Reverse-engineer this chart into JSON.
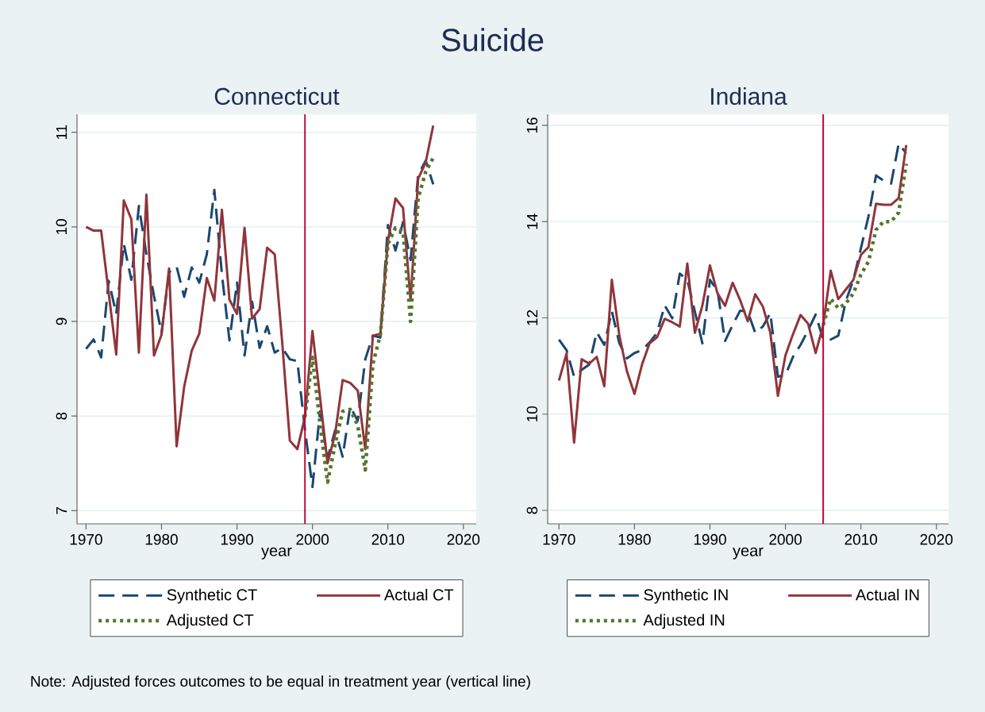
{
  "chart_data": [
    {
      "type": "line",
      "title": "Suicide",
      "subtitle": "Connecticut",
      "xlabel": "year",
      "x": [
        1970,
        1971,
        1972,
        1973,
        1974,
        1975,
        1976,
        1977,
        1978,
        1979,
        1980,
        1981,
        1982,
        1983,
        1984,
        1985,
        1986,
        1987,
        1988,
        1989,
        1990,
        1991,
        1992,
        1993,
        1994,
        1995,
        1996,
        1997,
        1998,
        1999,
        2000,
        2001,
        2002,
        2003,
        2004,
        2005,
        2006,
        2007,
        2008,
        2009,
        2010,
        2011,
        2012,
        2013,
        2014,
        2015,
        2016
      ],
      "xlim": [
        1968.8,
        2021.7
      ],
      "xticks": [
        1970,
        1980,
        1990,
        2000,
        2010,
        2020
      ],
      "ylim": [
        6.86,
        11.19
      ],
      "yticks": [
        7,
        8,
        9,
        10,
        11
      ],
      "grid": "y",
      "legend": "bottom",
      "series": [
        {
          "name": "Synthetic CT",
          "color": "#1a476f",
          "line_style": "dashed",
          "values": [
            8.71,
            8.81,
            8.62,
            9.43,
            9.08,
            9.82,
            9.44,
            10.22,
            9.71,
            9.27,
            8.88,
            9.52,
            9.58,
            9.26,
            9.57,
            9.41,
            9.71,
            10.39,
            9.5,
            8.8,
            9.41,
            8.64,
            9.21,
            8.72,
            8.95,
            8.67,
            8.72,
            8.6,
            8.58,
            7.86,
            7.25,
            8.05,
            7.55,
            7.85,
            7.57,
            8.1,
            7.95,
            8.6,
            8.85,
            8.83,
            10.02,
            9.75,
            10.05,
            9.65,
            10.55,
            10.7,
            10.45
          ]
        },
        {
          "name": "Actual CT",
          "color": "#90353b",
          "line_style": "solid",
          "values": [
            10.0,
            9.96,
            9.96,
            9.3,
            8.65,
            10.28,
            10.08,
            8.67,
            10.34,
            8.64,
            8.86,
            9.56,
            7.68,
            8.31,
            8.69,
            8.87,
            9.46,
            9.22,
            10.18,
            9.23,
            9.08,
            9.99,
            9.03,
            9.13,
            9.78,
            9.71,
            8.77,
            7.74,
            7.65,
            7.99,
            8.9,
            8.2,
            7.5,
            7.81,
            8.38,
            8.35,
            8.27,
            7.65,
            8.85,
            8.87,
            9.85,
            10.3,
            10.2,
            9.22,
            10.51,
            10.68,
            11.07
          ]
        },
        {
          "name": "Adjusted CT",
          "color": "#55752f",
          "line_style": "dotted",
          "x": [
            1999,
            2000,
            2001,
            2002,
            2003,
            2004,
            2005,
            2006,
            2007,
            2008,
            2009,
            2010,
            2011,
            2012,
            2013,
            2014,
            2015,
            2016
          ],
          "values": [
            7.99,
            8.62,
            7.92,
            7.3,
            7.7,
            8.05,
            8.07,
            7.9,
            7.43,
            8.55,
            8.86,
            9.82,
            9.99,
            9.95,
            9.0,
            10.3,
            10.58,
            10.73
          ]
        }
      ],
      "ref_lines": [
        {
          "axis": "x",
          "value": 1999,
          "color": "#c10534"
        }
      ],
      "annotations": [
        "Note: Adjusted forces outcomes to be equal in treatment year (vertical line)"
      ]
    },
    {
      "type": "line",
      "subtitle": "Indiana",
      "xlabel": "year",
      "x": [
        1970,
        1971,
        1972,
        1973,
        1974,
        1975,
        1976,
        1977,
        1978,
        1979,
        1980,
        1981,
        1982,
        1983,
        1984,
        1985,
        1986,
        1987,
        1988,
        1989,
        1990,
        1991,
        1992,
        1993,
        1994,
        1995,
        1996,
        1997,
        1998,
        1999,
        2000,
        2001,
        2002,
        2003,
        2004,
        2005,
        2006,
        2007,
        2008,
        2009,
        2010,
        2011,
        2012,
        2013,
        2014,
        2015,
        2016
      ],
      "xlim": [
        1968.5,
        2021.6
      ],
      "xticks": [
        1970,
        1980,
        1990,
        2000,
        2010,
        2020
      ],
      "ylim": [
        7.72,
        16.23
      ],
      "yticks": [
        8,
        10,
        12,
        14,
        16
      ],
      "grid": "y",
      "legend": "bottom",
      "series": [
        {
          "name": "Synthetic IN",
          "color": "#1a476f",
          "line_style": "dashed",
          "values": [
            11.55,
            11.33,
            10.78,
            10.92,
            11.03,
            11.7,
            11.44,
            12.14,
            11.47,
            11.16,
            11.27,
            11.33,
            11.49,
            11.69,
            12.26,
            11.99,
            12.92,
            12.79,
            12.13,
            11.47,
            12.79,
            12.57,
            11.52,
            11.85,
            12.15,
            12.13,
            11.69,
            11.82,
            12.1,
            10.78,
            10.81,
            11.19,
            11.44,
            11.74,
            12.07,
            11.55,
            11.55,
            11.63,
            12.35,
            12.79,
            13.45,
            14.11,
            14.96,
            14.85,
            14.79,
            15.62,
            15.42
          ]
        },
        {
          "name": "Actual IN",
          "color": "#90353b",
          "line_style": "solid",
          "values": [
            10.7,
            11.26,
            9.41,
            11.14,
            11.05,
            11.19,
            10.58,
            12.79,
            11.63,
            10.89,
            10.42,
            11.03,
            11.47,
            11.6,
            11.98,
            11.91,
            11.82,
            13.13,
            11.69,
            12.26,
            13.09,
            12.51,
            12.25,
            12.73,
            12.37,
            11.93,
            12.49,
            12.24,
            11.69,
            10.38,
            11.22,
            11.66,
            12.06,
            11.88,
            11.27,
            11.85,
            12.98,
            12.39,
            12.59,
            12.79,
            13.31,
            13.47,
            14.37,
            14.35,
            14.35,
            14.49,
            15.59
          ]
        },
        {
          "name": "Adjusted IN",
          "color": "#55752f",
          "line_style": "dotted",
          "x": [
            2005,
            2006,
            2007,
            2008,
            2009,
            2010,
            2011,
            2012,
            2013,
            2014,
            2015,
            2016
          ],
          "values": [
            11.85,
            12.4,
            12.2,
            12.3,
            12.51,
            12.9,
            13.17,
            13.83,
            14.0,
            14.0,
            14.19,
            15.2
          ]
        }
      ],
      "ref_lines": [
        {
          "axis": "x",
          "value": 2005,
          "color": "#c10534"
        }
      ]
    }
  ]
}
